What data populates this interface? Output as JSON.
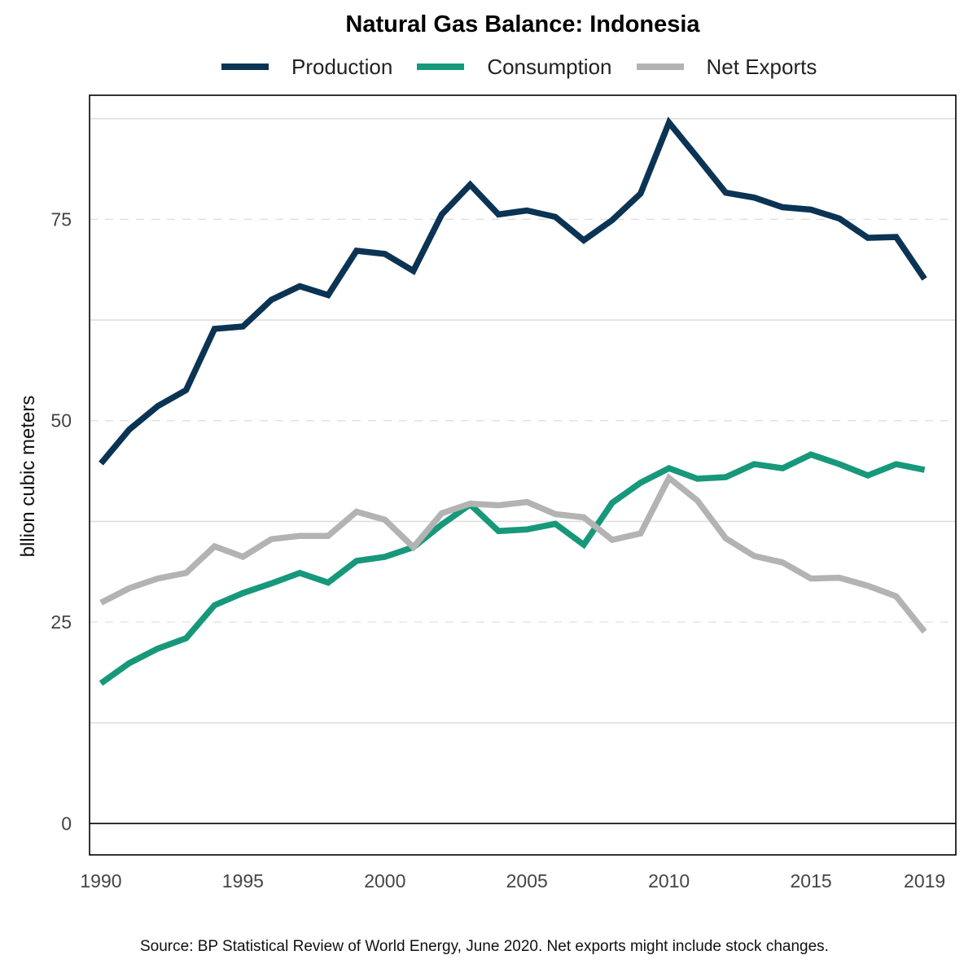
{
  "chart_data": {
    "type": "line",
    "title": "Natural Gas Balance: Indonesia",
    "ylabel": "bllion cubic meters",
    "xlabel": "",
    "source": "Source: BP Statistical Review of World Energy, June 2020. Net exports might include stock changes.",
    "xlim": [
      1989.6,
      1990.0
    ],
    "x_range": [
      1989.6,
      2020.1
    ],
    "ylim": [
      -3.9,
      90.4
    ],
    "x_ticks": [
      1990,
      1995,
      2000,
      2005,
      2010,
      2015,
      2019
    ],
    "x_tick_labels": [
      "1990",
      "1995",
      "2000",
      "2005",
      "2010",
      "2015",
      "2019"
    ],
    "y_ticks": [
      0,
      25,
      50,
      75
    ],
    "y_tick_labels": [
      "0",
      "25",
      "50",
      "75"
    ],
    "y_minor_gridlines": [
      12.5,
      37.5,
      62.5,
      87.5
    ],
    "legend_position": "top",
    "grid": true,
    "x": [
      1990,
      1991,
      1992,
      1993,
      1994,
      1995,
      1996,
      1997,
      1998,
      1999,
      2000,
      2001,
      2002,
      2003,
      2004,
      2005,
      2006,
      2007,
      2008,
      2009,
      2010,
      2011,
      2012,
      2013,
      2014,
      2015,
      2016,
      2017,
      2018,
      2019
    ],
    "series": [
      {
        "name": "Production",
        "color": "#0b3354",
        "values": [
          44.7,
          48.9,
          51.8,
          53.8,
          61.4,
          61.7,
          65.0,
          66.7,
          65.6,
          71.1,
          70.7,
          68.6,
          75.6,
          79.3,
          75.6,
          76.1,
          75.3,
          72.4,
          74.9,
          78.2,
          87.0,
          82.7,
          78.3,
          77.7,
          76.5,
          76.2,
          75.1,
          72.7,
          72.8,
          67.6
        ]
      },
      {
        "name": "Consumption",
        "color": "#17987a",
        "values": [
          17.4,
          19.9,
          21.7,
          23.0,
          27.1,
          28.6,
          29.8,
          31.1,
          29.9,
          32.6,
          33.1,
          34.3,
          37.1,
          39.6,
          36.3,
          36.5,
          37.2,
          34.6,
          39.8,
          42.3,
          44.1,
          42.8,
          43.0,
          44.6,
          44.1,
          45.8,
          44.6,
          43.2,
          44.6,
          43.9
        ]
      },
      {
        "name": "Net Exports",
        "color": "#b3b3b3",
        "values": [
          27.4,
          29.2,
          30.4,
          31.1,
          34.4,
          33.1,
          35.3,
          35.7,
          35.7,
          38.7,
          37.7,
          34.3,
          38.5,
          39.7,
          39.5,
          39.9,
          38.4,
          38.0,
          35.2,
          36.0,
          42.9,
          40.1,
          35.4,
          33.2,
          32.4,
          30.4,
          30.5,
          29.5,
          28.2,
          23.8
        ]
      }
    ]
  }
}
